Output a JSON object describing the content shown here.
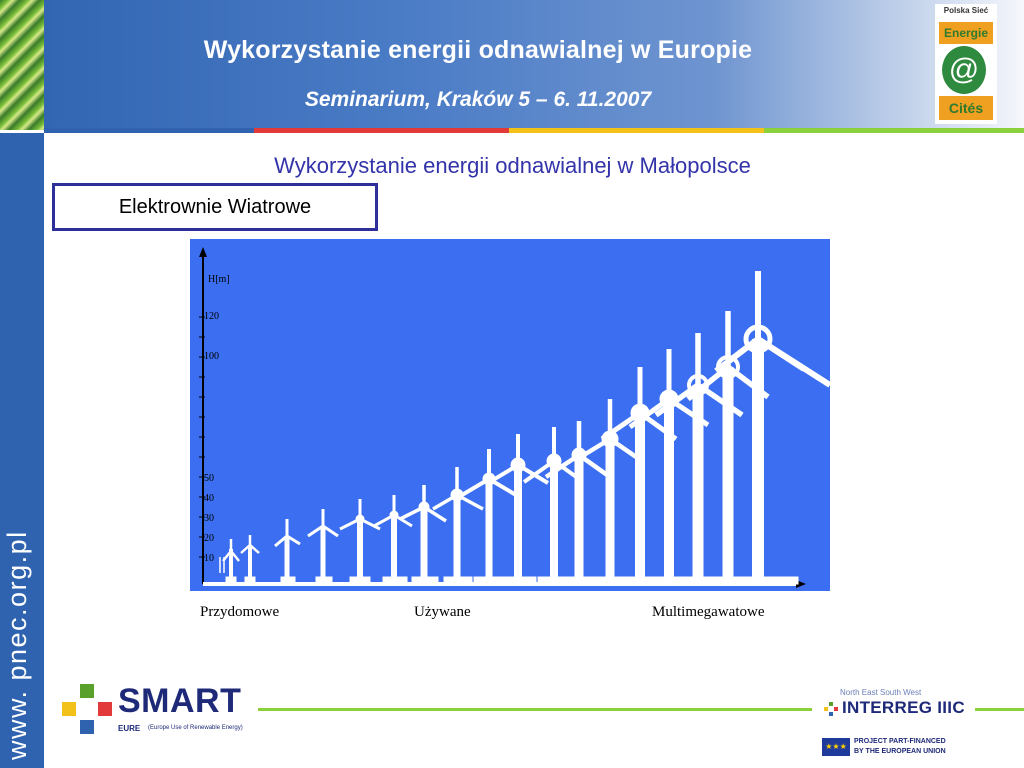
{
  "header": {
    "title": "Wykorzystanie energii odnawialnej w Europie",
    "subtitle": "Seminarium, Kraków 5 – 6. 11.2007"
  },
  "logo": {
    "top_text": "Polska Sieć",
    "energie": "Energie",
    "cities": "Cités"
  },
  "sidebar": {
    "url": "www. pnec.org.pl"
  },
  "slide": {
    "title": "Wykorzystanie energii odnawialnej w Małopolsce",
    "section_label": "Elektrownie Wiatrowe"
  },
  "chart": {
    "axis_label": "H[m]",
    "ticks": [
      "120",
      "100",
      "50",
      "40",
      "30",
      "20",
      "10"
    ],
    "categories": [
      "Przydomowe",
      "Używane",
      "Multimegawatowe"
    ]
  },
  "footer": {
    "smart_text": "SMART",
    "smart_eure": "EURE",
    "smart_desc": "(Europe Use of Renewable Energy)",
    "interreg_top": "North East South West",
    "interreg_text": "INTERREG IIIC",
    "eu_text_line1": "PROJECT PART-FINANCED",
    "eu_text_line2": "BY THE EUROPEAN UNION"
  },
  "colors": {
    "header_blue": "#2f63b0",
    "chart_blue": "#3b6ef0",
    "title_text": "#3333aa",
    "footer_green": "#8bd13c"
  }
}
